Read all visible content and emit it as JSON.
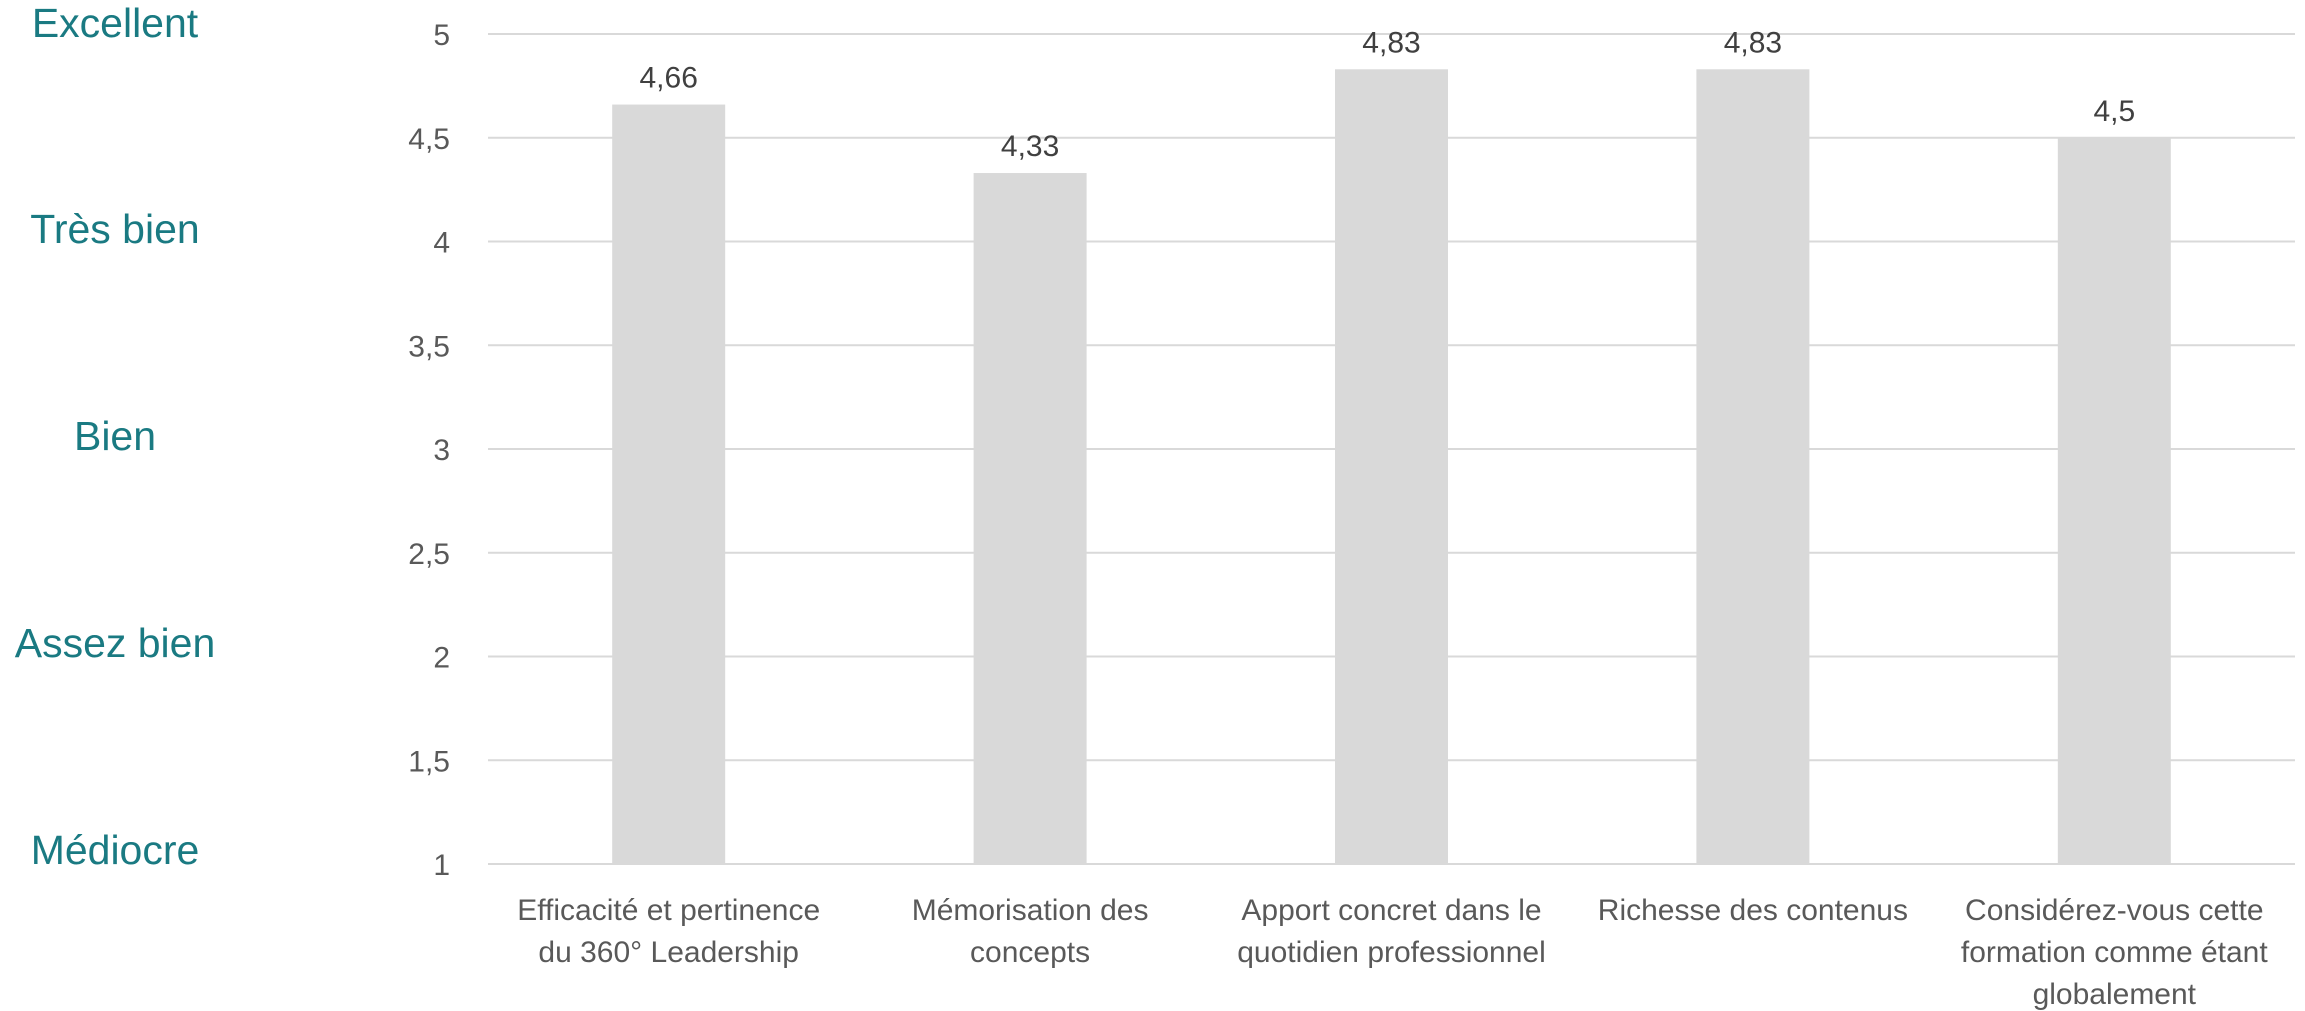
{
  "rating_scale": {
    "labels": [
      "Excellent",
      "Très bien",
      "Bien",
      "Assez bien",
      "Médiocre"
    ],
    "color": "#1a7a82"
  },
  "chart_data": {
    "type": "bar",
    "title": "",
    "xlabel": "",
    "ylabel": "",
    "categories": [
      [
        "Efficacité et pertinence",
        "du 360° Leadership"
      ],
      [
        "Mémorisation des",
        "concepts"
      ],
      [
        "Apport concret dans le",
        "quotidien professionnel"
      ],
      [
        "Richesse des contenus"
      ],
      [
        "Considérez-vous cette",
        "formation comme étant",
        "globalement"
      ]
    ],
    "values": [
      4.66,
      4.33,
      4.83,
      4.83,
      4.5
    ],
    "data_labels": [
      "4,66",
      "4,33",
      "4,83",
      "4,83",
      "4,5"
    ],
    "ylim": [
      1,
      5
    ],
    "yticks": [
      1,
      1.5,
      2,
      2.5,
      3,
      3.5,
      4,
      4.5,
      5
    ],
    "ytick_labels": [
      "1",
      "1,5",
      "2",
      "2,5",
      "3",
      "3,5",
      "4",
      "4,5",
      "5"
    ],
    "grid": true,
    "legend": "none",
    "bar_color": "#d9d9d9",
    "grid_color": "#d9d9d9",
    "text_color": "#595959"
  }
}
